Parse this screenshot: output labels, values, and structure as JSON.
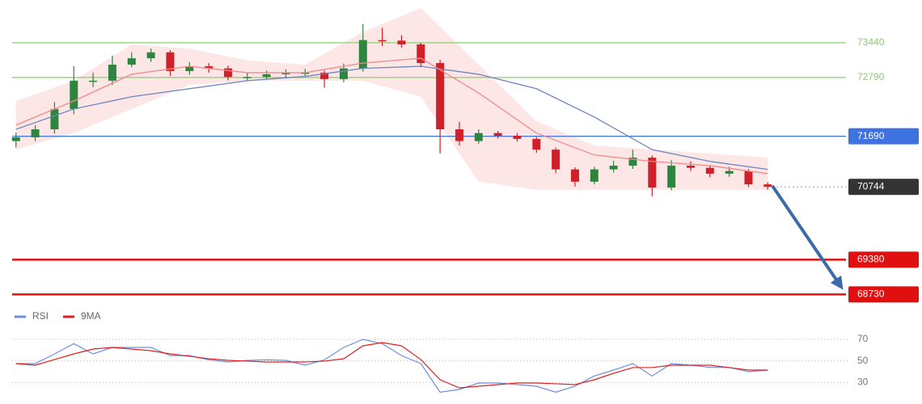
{
  "chart_data": [
    {
      "type": "candlestick",
      "x": [
        0,
        1,
        2,
        3,
        4,
        5,
        6,
        7,
        8,
        9,
        10,
        11,
        12,
        13,
        14,
        15,
        16,
        17,
        18,
        19,
        20,
        21,
        22,
        23,
        24,
        25,
        26,
        27,
        28,
        29,
        30,
        31,
        32,
        33,
        34,
        35,
        36,
        37,
        38,
        39
      ],
      "open": [
        71600,
        71670,
        71820,
        72200,
        72730,
        72730,
        73030,
        73150,
        73260,
        72910,
        73000,
        72960,
        72800,
        72800,
        72850,
        72880,
        72880,
        72760,
        72960,
        73490,
        73480,
        73410,
        73060,
        71820,
        71600,
        71750,
        71700,
        71640,
        71440,
        71070,
        70840,
        71070,
        71140,
        71290,
        70730,
        71140,
        71100,
        70990,
        71040,
        70790
      ],
      "high": [
        71760,
        71900,
        72330,
        73000,
        72880,
        73200,
        73260,
        73330,
        73300,
        73080,
        73060,
        73010,
        72880,
        72920,
        72940,
        72950,
        72920,
        73050,
        73790,
        73720,
        73580,
        73440,
        73120,
        71960,
        71820,
        71790,
        71750,
        71680,
        71480,
        71110,
        71120,
        71230,
        71440,
        71330,
        71240,
        71220,
        71150,
        71120,
        71080,
        70830
      ],
      "low": [
        71480,
        71600,
        71740,
        72100,
        72610,
        72650,
        72980,
        73080,
        72820,
        72840,
        72880,
        72740,
        72720,
        72750,
        72790,
        72820,
        72600,
        72700,
        72900,
        73380,
        73350,
        72980,
        71370,
        71520,
        71550,
        71650,
        71590,
        71380,
        71000,
        70750,
        70790,
        71010,
        71080,
        70570,
        70680,
        71040,
        70920,
        70930,
        70740,
        70690
      ],
      "close": [
        71670,
        71820,
        72200,
        72730,
        72730,
        73030,
        73150,
        73260,
        72910,
        73000,
        72960,
        72800,
        72800,
        72850,
        72880,
        72880,
        72760,
        72960,
        73490,
        73480,
        73410,
        73060,
        71820,
        71600,
        71750,
        71700,
        71640,
        71440,
        71070,
        70840,
        71070,
        71140,
        71290,
        70730,
        71140,
        71100,
        70990,
        71040,
        70790,
        70744
      ],
      "up_color": "#2e8540",
      "down_color": "#d0202a",
      "xlim": [
        -0.2,
        47
      ],
      "ylim": [
        68570,
        74240
      ],
      "ma_x": [
        0,
        3,
        6,
        9,
        12,
        15,
        18,
        21,
        24,
        27,
        30,
        33,
        36,
        39
      ],
      "lines": [
        {
          "color": "#6c86bd",
          "values": [
            71820,
            72200,
            72430,
            72580,
            72730,
            72810,
            72960,
            73000,
            72850,
            72580,
            72050,
            71440,
            71220,
            71070
          ]
        },
        {
          "color": "#f08a8a",
          "values": [
            71900,
            72350,
            72850,
            73000,
            72880,
            72880,
            73060,
            73150,
            72500,
            71750,
            71340,
            71220,
            71140,
            70990
          ]
        }
      ],
      "band": {
        "color": "#fcdede",
        "upper": [
          72350,
          72730,
          73410,
          73330,
          73110,
          73030,
          73640,
          74090,
          73030,
          71970,
          71520,
          71440,
          71370,
          71290
        ],
        "lower": [
          71440,
          71750,
          72200,
          72650,
          72730,
          72730,
          72730,
          72430,
          70840,
          70690,
          70690,
          70690,
          70690,
          70690
        ]
      },
      "levels": [
        {
          "value": 73440,
          "color": "#8fcc72",
          "line": "solid",
          "label": "plain"
        },
        {
          "value": 72790,
          "color": "#8fcc72",
          "line": "solid",
          "label": "plain"
        },
        {
          "value": 71690,
          "color": "#3d72e0",
          "line": "solid",
          "label": "box"
        },
        {
          "value": 70744,
          "color": "#333333",
          "line": "dotted",
          "label": "box"
        },
        {
          "value": 69380,
          "color": "#e01010",
          "line": "thick",
          "label": "box"
        },
        {
          "value": 68730,
          "color": "#e01010",
          "line": "thick",
          "label": "box"
        }
      ]
    },
    {
      "type": "line",
      "x": [
        0,
        1,
        2,
        3,
        4,
        5,
        6,
        7,
        8,
        9,
        10,
        11,
        12,
        13,
        14,
        15,
        16,
        17,
        18,
        19,
        20,
        21,
        22,
        23,
        24,
        25,
        26,
        27,
        28,
        29,
        30,
        31,
        32,
        33,
        34,
        35,
        36,
        37,
        38,
        39
      ],
      "xlim": [
        -0.2,
        47
      ],
      "ylim": [
        10,
        85
      ],
      "yticks": [
        30,
        50,
        70
      ],
      "grid": true,
      "legend": "top-left",
      "series": [
        {
          "name": "RSI",
          "color": "#6b8fe0",
          "values": [
            47.5,
            47.5,
            56.5,
            66,
            56.5,
            62.5,
            62.5,
            62.5,
            55,
            55,
            51,
            49,
            50.5,
            51,
            50.5,
            46,
            51,
            62.5,
            70,
            66,
            55,
            47.5,
            21,
            23.5,
            29.5,
            29.5,
            28,
            26.5,
            21,
            26.5,
            36,
            41.5,
            47.5,
            36,
            47.5,
            46,
            44,
            44,
            40,
            41.5
          ]
        },
        {
          "name": "9MA",
          "color": "#e02020",
          "values": [
            47.5,
            46,
            51.3,
            56.5,
            61,
            62.5,
            61,
            59.5,
            56.5,
            54.3,
            52,
            50.5,
            49.8,
            49,
            49,
            49,
            49.8,
            52,
            64,
            67,
            64,
            51.3,
            32.5,
            25,
            26.5,
            28,
            29.5,
            29.5,
            28.8,
            28,
            32.5,
            38.5,
            43.8,
            43.8,
            46,
            46,
            46,
            43.8,
            41.5,
            41.5
          ]
        }
      ]
    }
  ]
}
